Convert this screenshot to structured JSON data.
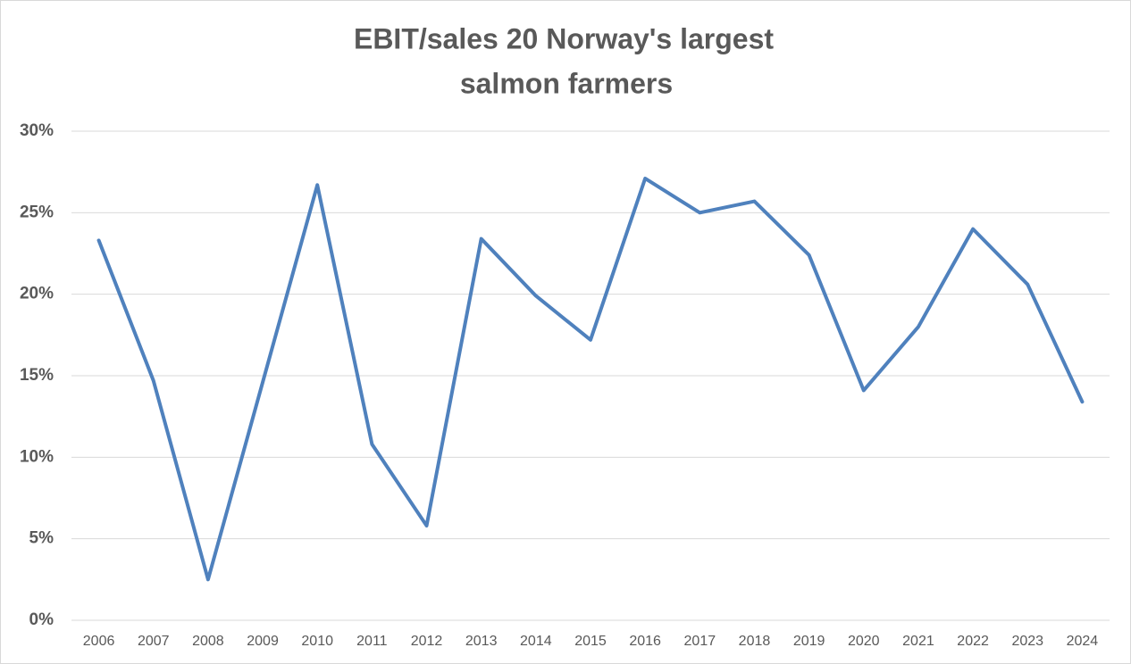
{
  "chart_data": {
    "type": "line",
    "title": [
      "EBIT/sales 20 Norway's largest",
      "salmon farmers"
    ],
    "categories": [
      "2006",
      "2007",
      "2008",
      "2009",
      "2010",
      "2011",
      "2012",
      "2013",
      "2014",
      "2015",
      "2016",
      "2017",
      "2018",
      "2019",
      "2020",
      "2021",
      "2022",
      "2023",
      "2024"
    ],
    "series": [
      {
        "color": "#4f81bd",
        "values": [
          23.3,
          14.7,
          2.5,
          14.6,
          26.7,
          10.8,
          5.8,
          23.4,
          19.9,
          17.2,
          27.1,
          25.0,
          25.7,
          22.4,
          14.1,
          18.0,
          24.0,
          20.6,
          13.4
        ]
      }
    ],
    "ylim": [
      0,
      30
    ],
    "yticks": [
      {
        "value": 0,
        "label": "0%"
      },
      {
        "value": 5,
        "label": "5%"
      },
      {
        "value": 10,
        "label": "10%"
      },
      {
        "value": 15,
        "label": "15%"
      },
      {
        "value": 20,
        "label": "20%"
      },
      {
        "value": 25,
        "label": "25%"
      },
      {
        "value": 30,
        "label": "30%"
      }
    ],
    "grid": true
  }
}
